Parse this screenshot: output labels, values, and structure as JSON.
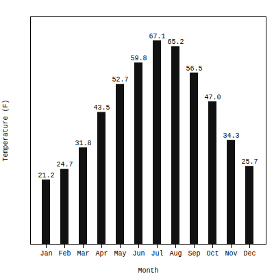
{
  "chart_data": {
    "type": "bar",
    "categories": [
      "Jan",
      "Feb",
      "Mar",
      "Apr",
      "May",
      "Jun",
      "Jul",
      "Aug",
      "Sep",
      "Oct",
      "Nov",
      "Dec"
    ],
    "values": [
      21.2,
      24.7,
      31.8,
      43.5,
      52.7,
      59.8,
      67.1,
      65.2,
      56.5,
      47.0,
      34.3,
      25.7
    ],
    "value_labels": [
      "21.2",
      "24.7",
      "31.8",
      "43.5",
      "52.7",
      "59.8",
      "67.1",
      "65.2",
      "56.5",
      "47.0",
      "34.3",
      "25.7"
    ],
    "color": "#111111",
    "xlabel": "Month",
    "ylabel": "Temperature (F)",
    "ylim": [
      0,
      75
    ],
    "data_labels": true,
    "tick_labels": "x",
    "grid": false
  }
}
